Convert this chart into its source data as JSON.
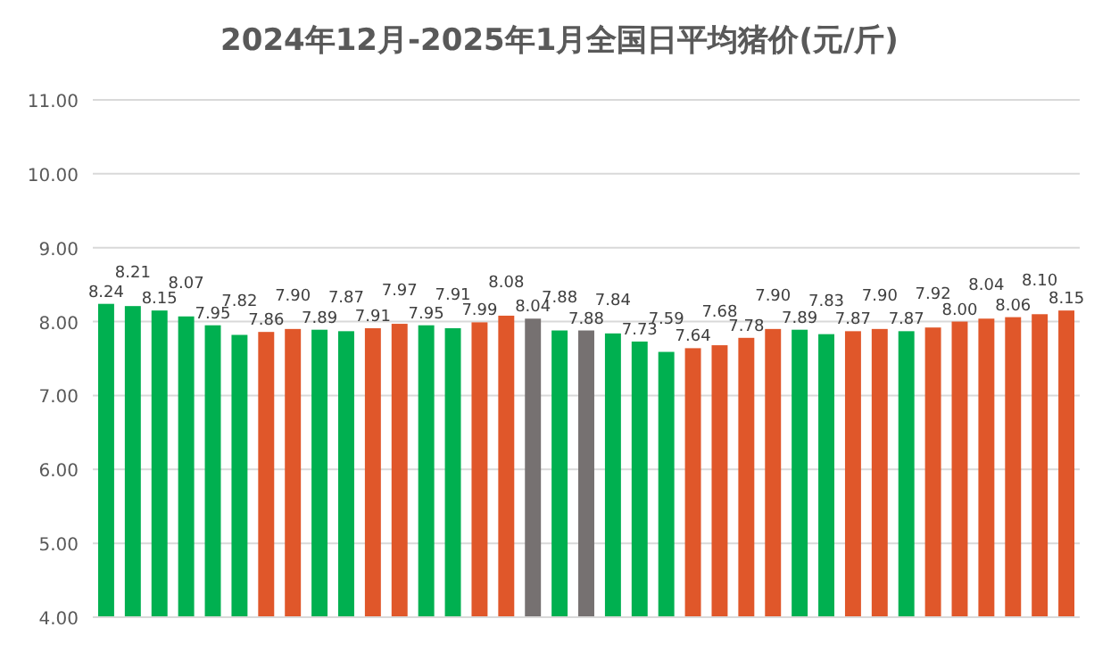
{
  "chart_data": {
    "type": "bar",
    "title": "2024年12月-2025年1月全国日平均猪价(元/斤)",
    "categories": [
      null,
      null,
      null,
      null,
      null,
      null,
      null,
      null,
      null,
      null,
      null,
      null,
      null,
      null,
      null,
      null,
      null,
      null,
      null,
      null,
      null,
      null,
      null,
      null,
      null,
      null,
      null,
      null,
      null,
      null,
      null,
      null,
      null,
      null,
      null,
      null,
      null
    ],
    "values": [
      8.24,
      8.21,
      8.15,
      8.07,
      7.95,
      7.82,
      7.86,
      7.9,
      7.89,
      7.87,
      7.91,
      7.97,
      7.95,
      7.91,
      7.99,
      8.08,
      8.04,
      7.88,
      7.88,
      7.84,
      7.73,
      7.59,
      7.64,
      7.68,
      7.78,
      7.9,
      7.89,
      7.83,
      7.87,
      7.9,
      7.87,
      7.92,
      8.0,
      8.04,
      8.06,
      8.1,
      8.15
    ],
    "colors": [
      "#00b050",
      "#00b050",
      "#00b050",
      "#00b050",
      "#00b050",
      "#00b050",
      "#e0572a",
      "#e0572a",
      "#00b050",
      "#00b050",
      "#e0572a",
      "#e0572a",
      "#00b050",
      "#00b050",
      "#e0572a",
      "#e0572a",
      "#767171",
      "#00b050",
      "#767171",
      "#00b050",
      "#00b050",
      "#00b050",
      "#e0572a",
      "#e0572a",
      "#e0572a",
      "#e0572a",
      "#00b050",
      "#00b050",
      "#e0572a",
      "#e0572a",
      "#00b050",
      "#e0572a",
      "#e0572a",
      "#e0572a",
      "#e0572a",
      "#e0572a",
      "#e0572a"
    ],
    "ylim": [
      4,
      11
    ],
    "yticks": [
      {
        "value": 4,
        "label": "4.00"
      },
      {
        "value": 5,
        "label": "5.00"
      },
      {
        "value": 6,
        "label": "6.00"
      },
      {
        "value": 7,
        "label": "7.00"
      },
      {
        "value": 8,
        "label": "8.00"
      },
      {
        "value": 9,
        "label": "9.00"
      },
      {
        "value": 10,
        "label": "10.00"
      },
      {
        "value": 11,
        "label": "11.00"
      }
    ],
    "value_labels": [
      "8.24",
      "8.21",
      "8.15",
      "8.07",
      "7.95",
      "7.82",
      "7.86",
      "7.90",
      "7.89",
      "7.87",
      "7.91",
      "7.97",
      "7.95",
      "7.91",
      "7.99",
      "8.08",
      "8.04",
      "7.88",
      "7.88",
      "7.84",
      "7.73",
      "7.59",
      "7.64",
      "7.68",
      "7.78",
      "7.90",
      "7.89",
      "7.83",
      "7.87",
      "7.90",
      "7.87",
      "7.92",
      "8.00",
      "8.04",
      "8.06",
      "8.10",
      "8.15"
    ],
    "grid": "y"
  }
}
